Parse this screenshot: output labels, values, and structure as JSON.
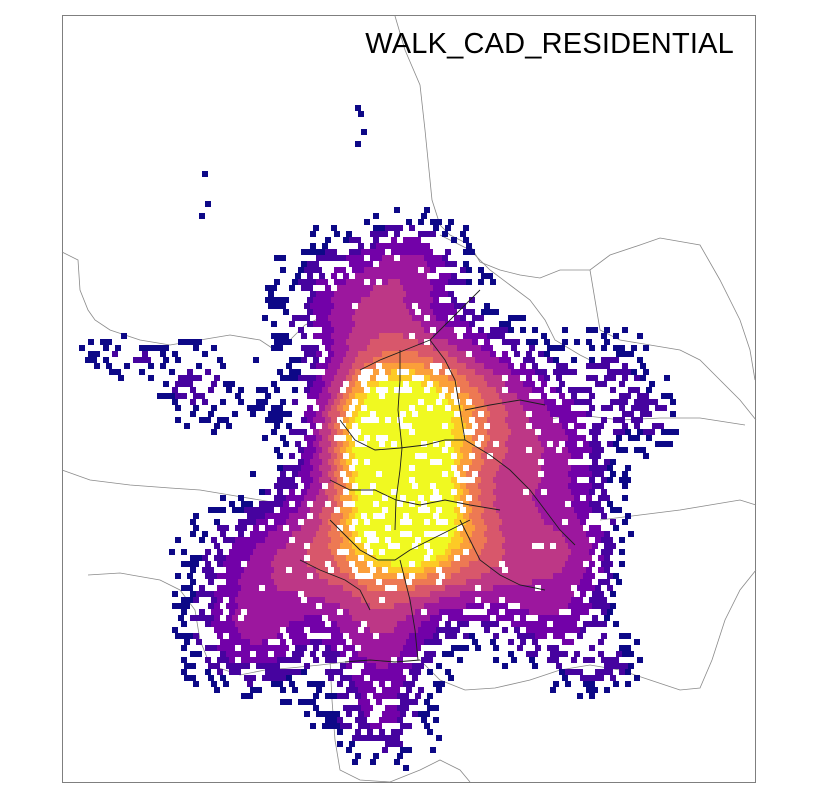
{
  "map": {
    "title": "WALK_CAD_RESIDENTIAL",
    "colormap": "plasma",
    "colormap_stops": [
      "#0d0887",
      "#46039f",
      "#7201a8",
      "#9c179e",
      "#bd3786",
      "#d8576b",
      "#ed7953",
      "#fb9f3a",
      "#fdca26",
      "#f0f921"
    ],
    "background_color": "#ffffff",
    "boundary_color": "#7a7a7a",
    "district_line_color": "#1a1a1a"
  }
}
